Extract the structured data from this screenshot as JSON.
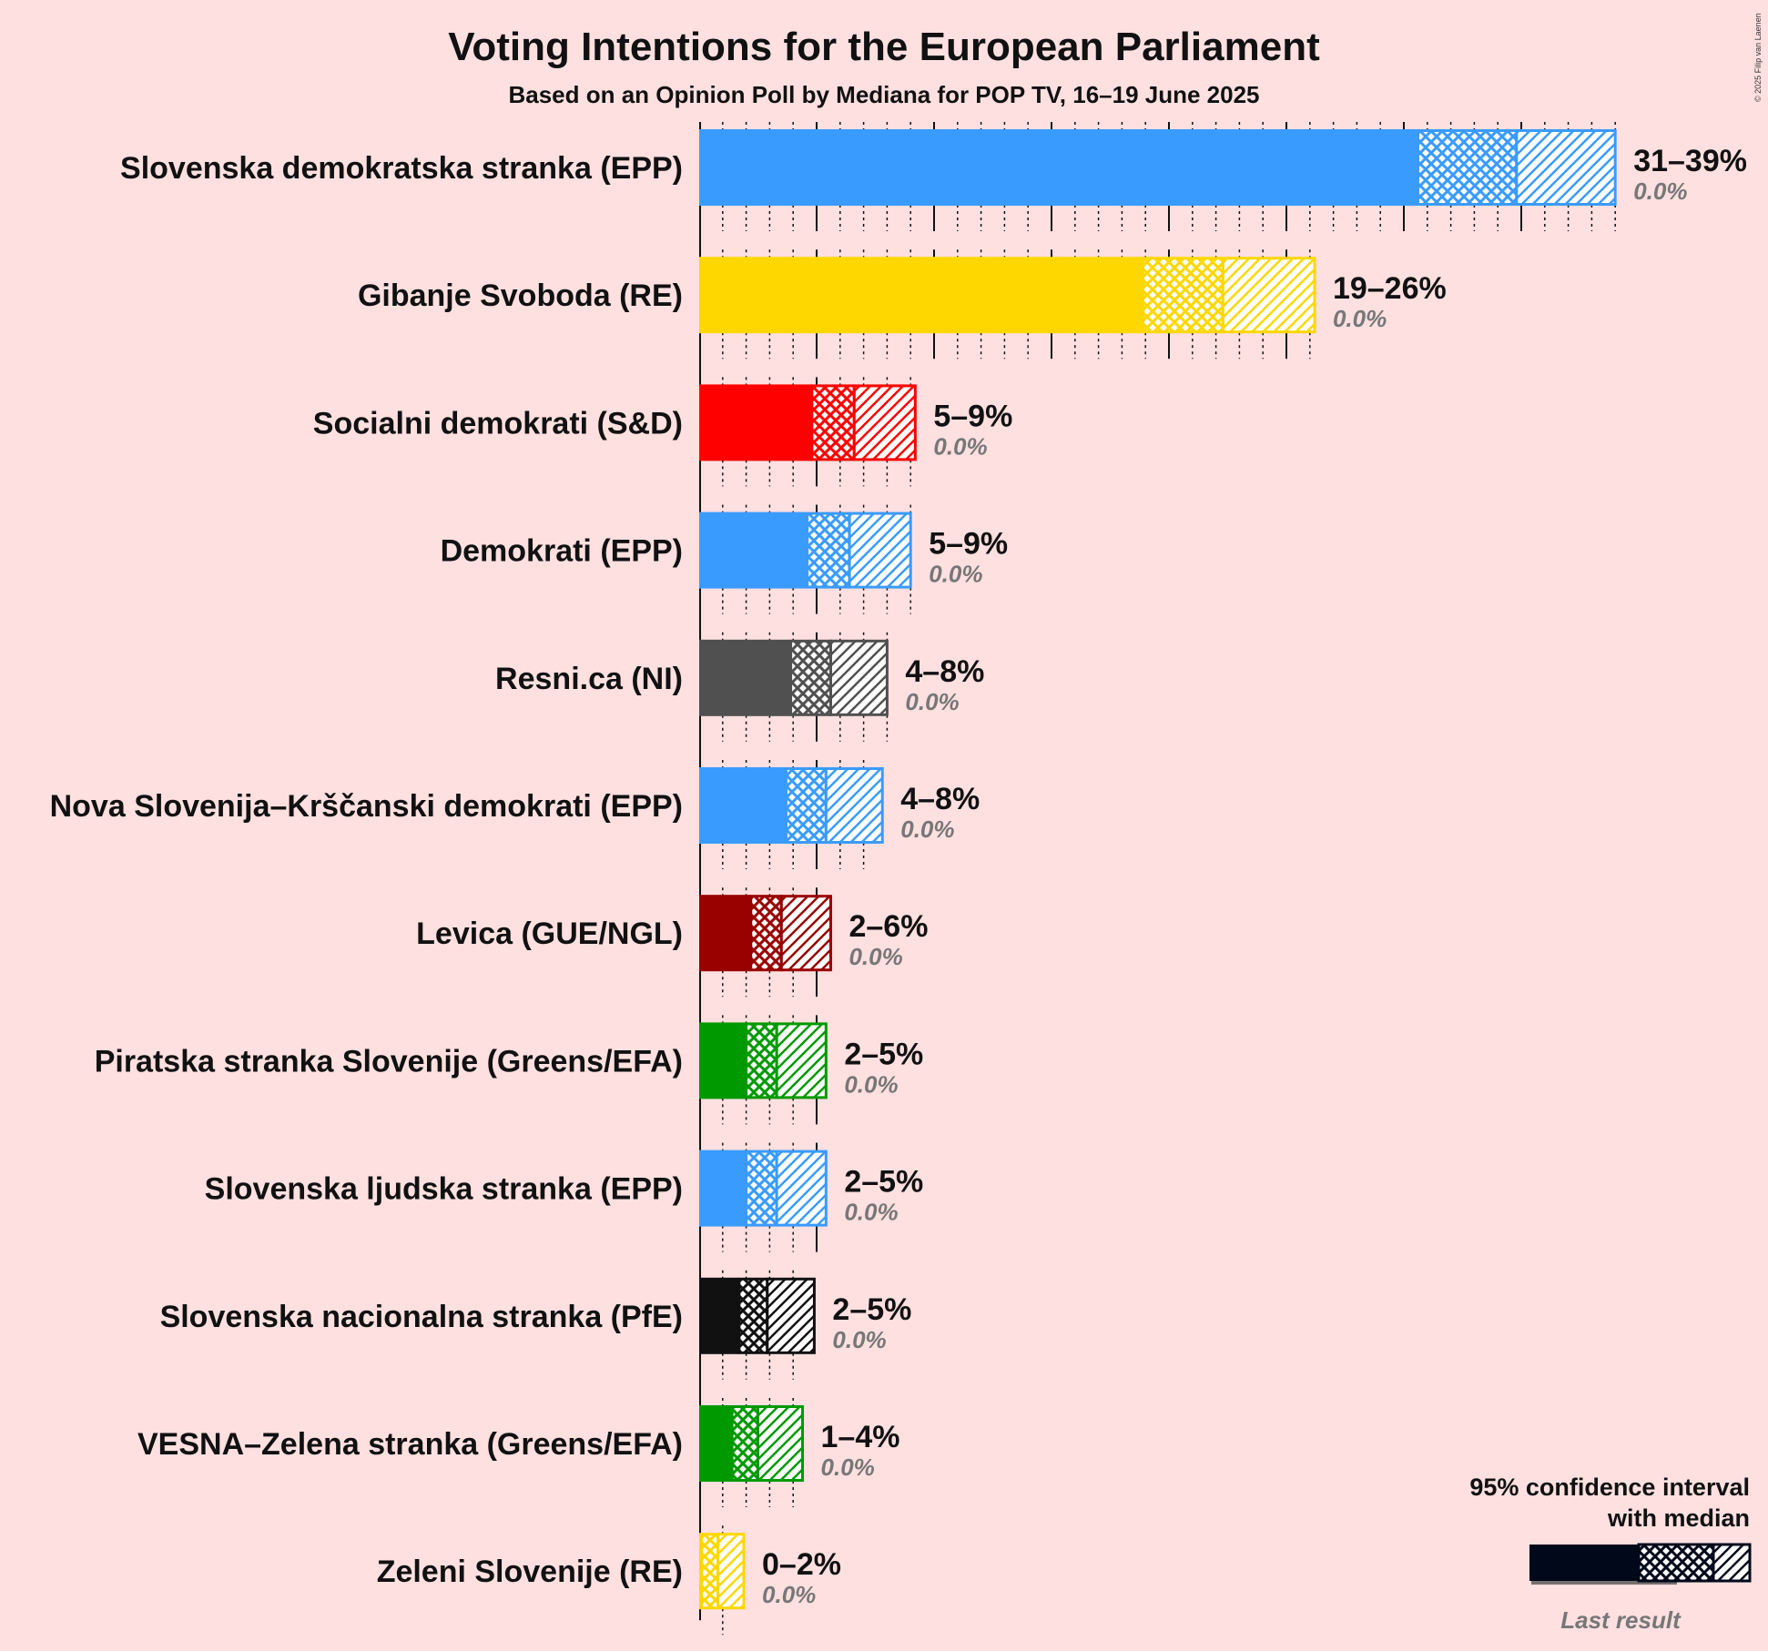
{
  "title": "Voting Intentions for the European Parliament",
  "subtitle": "Based on an Opinion Poll by Mediana for POP TV, 16–19 June 2025",
  "copyright": "© 2025 Filip van Laenen",
  "legend": {
    "title_line1": "95% confidence interval",
    "title_line2": "with median",
    "last_result": "Last result"
  },
  "chart_data": {
    "type": "bar",
    "orientation": "horizontal",
    "x_unit": "%",
    "categories": [
      "Slovenska demokratska stranka (EPP)",
      "Gibanje Svoboda (RE)",
      "Socialni demokrati (S&D)",
      "Demokrati (EPP)",
      "Resni.ca (NI)",
      "Nova Slovenija–Krščanski demokrati (EPP)",
      "Levica (GUE/NGL)",
      "Piratska stranka Slovenije (Greens/EFA)",
      "Slovenska ljudska stranka (EPP)",
      "Slovenska nacionalna stranka (PfE)",
      "VESNA–Zelena stranka (Greens/EFA)",
      "Zeleni Slovenije (RE)"
    ],
    "parties": [
      {
        "name": "Slovenska demokratska stranka (EPP)",
        "color": "#3A9BFF",
        "ci95_low": 30.6,
        "ci80_low": 32.7,
        "median": 34.8,
        "ci80_high": 37.3,
        "ci95_high": 39.0,
        "range_label": "31–39%",
        "last_result": "0.0%",
        "last_value": 0.0
      },
      {
        "name": "Gibanje Svoboda (RE)",
        "color": "#FFD700",
        "ci95_low": 18.9,
        "ci80_low": 20.2,
        "median": 22.3,
        "ci80_high": 24.7,
        "ci95_high": 26.2,
        "range_label": "19–26%",
        "last_result": "0.0%",
        "last_value": 0.0
      },
      {
        "name": "Socialni demokrati (S&D)",
        "color": "#FF0000",
        "ci95_low": 4.8,
        "ci80_low": 5.5,
        "median": 6.6,
        "ci80_high": 8.3,
        "ci95_high": 9.2,
        "range_label": "5–9%",
        "last_result": "0.0%",
        "last_value": 0.0
      },
      {
        "name": "Demokrati (EPP)",
        "color": "#3A9BFF",
        "ci95_low": 4.6,
        "ci80_low": 5.3,
        "median": 6.4,
        "ci80_high": 8.0,
        "ci95_high": 9.0,
        "range_label": "5–9%",
        "last_result": "0.0%",
        "last_value": 0.0
      },
      {
        "name": "Resni.ca (NI)",
        "color": "#505050",
        "ci95_low": 3.9,
        "ci80_low": 4.6,
        "median": 5.6,
        "ci80_high": 7.1,
        "ci95_high": 8.0,
        "range_label": "4–8%",
        "last_result": "0.0%",
        "last_value": 0.0
      },
      {
        "name": "Nova Slovenija–Krščanski demokrati (EPP)",
        "color": "#3A9BFF",
        "ci95_low": 3.7,
        "ci80_low": 4.4,
        "median": 5.4,
        "ci80_high": 6.8,
        "ci95_high": 7.8,
        "range_label": "4–8%",
        "last_result": "0.0%",
        "last_value": 0.0
      },
      {
        "name": "Levica (GUE/NGL)",
        "color": "#990000",
        "ci95_low": 2.2,
        "ci80_low": 2.7,
        "median": 3.5,
        "ci80_high": 4.8,
        "ci95_high": 5.6,
        "range_label": "2–6%",
        "last_result": "0.0%",
        "last_value": 0.0
      },
      {
        "name": "Piratska stranka Slovenije (Greens/EFA)",
        "color": "#009900",
        "ci95_low": 2.0,
        "ci80_low": 2.5,
        "median": 3.3,
        "ci80_high": 4.6,
        "ci95_high": 5.4,
        "range_label": "2–5%",
        "last_result": "0.0%",
        "last_value": 0.0
      },
      {
        "name": "Slovenska ljudska stranka (EPP)",
        "color": "#3A9BFF",
        "ci95_low": 2.0,
        "ci80_low": 2.5,
        "median": 3.3,
        "ci80_high": 4.6,
        "ci95_high": 5.4,
        "range_label": "2–5%",
        "last_result": "0.0%",
        "last_value": 0.0
      },
      {
        "name": "Slovenska nacionalna stranka (PfE)",
        "color": "#111111",
        "ci95_low": 1.7,
        "ci80_low": 2.1,
        "median": 2.9,
        "ci80_high": 4.1,
        "ci95_high": 4.9,
        "range_label": "2–5%",
        "last_result": "0.0%",
        "last_value": 0.0
      },
      {
        "name": "VESNA–Zelena stranka (Greens/EFA)",
        "color": "#009900",
        "ci95_low": 1.4,
        "ci80_low": 1.8,
        "median": 2.5,
        "ci80_high": 3.6,
        "ci95_high": 4.4,
        "range_label": "1–4%",
        "last_result": "0.0%",
        "last_value": 0.0
      },
      {
        "name": "Zeleni Slovenije (RE)",
        "color": "#FFD700",
        "ci95_low": 0.1,
        "ci80_low": 0.3,
        "median": 0.8,
        "ci80_high": 1.4,
        "ci95_high": 1.9,
        "range_label": "0–2%",
        "last_result": "0.0%",
        "last_value": 0.0
      }
    ]
  }
}
